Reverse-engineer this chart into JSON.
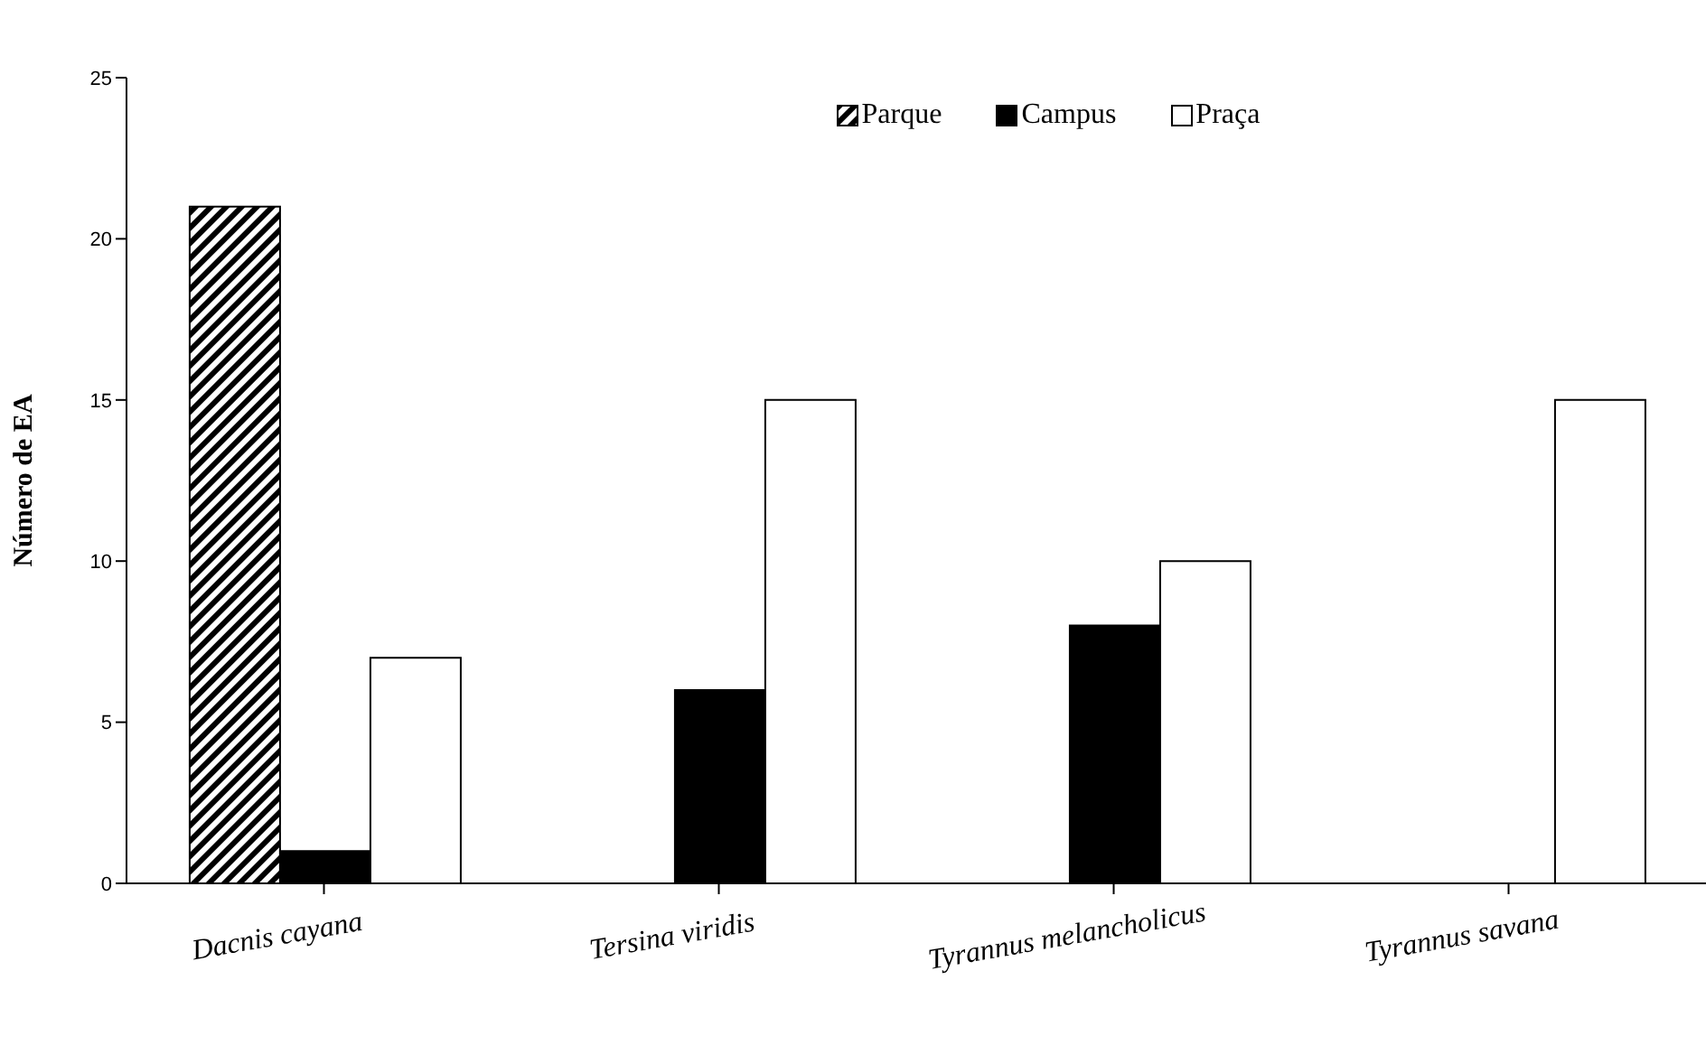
{
  "chart_data": {
    "type": "bar",
    "ylabel": "Número de EA",
    "categories": [
      "Dacnis cayana",
      "Tersina viridis",
      "Tyrannus melancholicus",
      "Tyrannus savana"
    ],
    "series": [
      {
        "name": "Parque",
        "color": "#000000",
        "values": [
          21,
          null,
          null,
          null
        ]
      },
      {
        "name": "Campus",
        "color": "#000000",
        "values": [
          1,
          6,
          8,
          null
        ]
      },
      {
        "name": "Praça",
        "color": "#ffffff",
        "values": [
          7,
          15,
          10,
          15
        ]
      }
    ],
    "ylim": [
      0,
      25
    ],
    "yticks": [
      0,
      5,
      10,
      15,
      20,
      25
    ],
    "grid": false,
    "legend": "top"
  }
}
